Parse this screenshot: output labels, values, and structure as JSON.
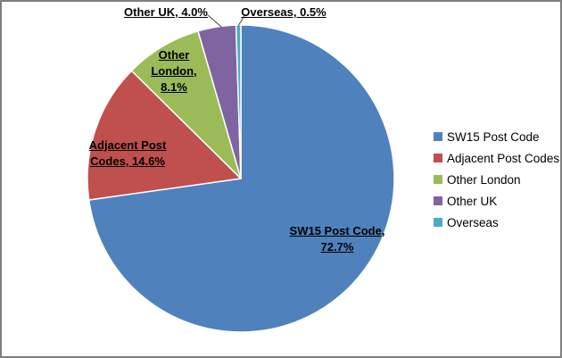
{
  "chart": {
    "background": "#FFFFFF",
    "border_color": "#7F7F7F",
    "label_color": "#000000"
  },
  "chart_data": {
    "type": "pie",
    "title": "",
    "categories": [
      "SW15 Post Code",
      "Adjacent Post Codes",
      "Other London",
      "Other UK",
      "Overseas"
    ],
    "values": [
      72.7,
      14.6,
      8.1,
      4.0,
      0.5
    ],
    "unit": "%",
    "colors": [
      "#4F81BD",
      "#C0504D",
      "#9BBB59",
      "#8064A2",
      "#4BACC6"
    ],
    "start_angle_deg": 0,
    "direction": "clockwise",
    "legend_position": "right",
    "data_labels": [
      {
        "category": "SW15 Post Code",
        "placement": "inside",
        "lines": [
          "SW15 Post Code,",
          "72.7%"
        ]
      },
      {
        "category": "Adjacent Post Codes",
        "placement": "inside",
        "lines": [
          "Adjacent Post",
          "Codes, 14.6%"
        ]
      },
      {
        "category": "Other London",
        "placement": "inside",
        "lines": [
          "Other",
          "London,",
          "8.1%"
        ]
      },
      {
        "category": "Other UK",
        "placement": "outside",
        "lines": [
          "Other UK, 4.0%"
        ]
      },
      {
        "category": "Overseas",
        "placement": "outside",
        "lines": [
          "Overseas, 0.5%"
        ]
      }
    ]
  }
}
